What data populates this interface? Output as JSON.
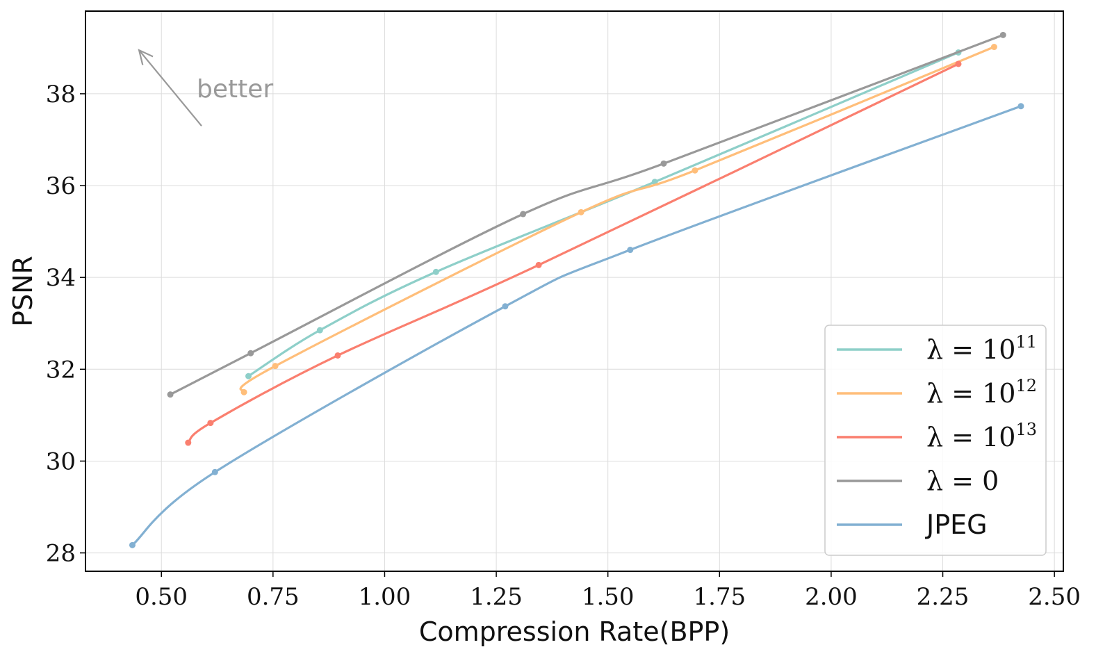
{
  "chart_data": {
    "type": "line",
    "title": "",
    "xlabel": "Compression Rate(BPP)",
    "ylabel": "PSNR",
    "xlim": [
      0.33,
      2.52
    ],
    "ylim": [
      27.6,
      39.8
    ],
    "xticks": [
      0.5,
      0.75,
      1.0,
      1.25,
      1.5,
      1.75,
      2.0,
      2.25,
      2.5
    ],
    "xtick_labels": [
      "0.50",
      "0.75",
      "1.00",
      "1.25",
      "1.50",
      "1.75",
      "2.00",
      "2.25",
      "2.50"
    ],
    "yticks": [
      28,
      30,
      32,
      34,
      36,
      38
    ],
    "ytick_labels": [
      "28",
      "30",
      "32",
      "34",
      "36",
      "38"
    ],
    "grid": true,
    "legend_position": "lower-right",
    "annotation": {
      "text": "better",
      "arrow_from": [
        0.59,
        37.3
      ],
      "arrow_to": [
        0.45,
        38.95
      ]
    },
    "series": [
      {
        "name": "λ = 10^11",
        "legend_base": "λ = 10",
        "legend_exp": "11",
        "color": "#8ecfc9",
        "x": [
          0.695,
          0.855,
          1.115,
          1.605,
          2.285
        ],
        "y": [
          31.85,
          32.85,
          34.12,
          36.08,
          38.9
        ]
      },
      {
        "name": "λ = 10^12",
        "legend_base": "λ = 10",
        "legend_exp": "12",
        "color": "#ffbe7a",
        "x": [
          0.685,
          0.755,
          1.44,
          1.695,
          2.365
        ],
        "y": [
          31.5,
          32.07,
          35.42,
          36.33,
          39.02
        ]
      },
      {
        "name": "λ = 10^13",
        "legend_base": "λ = 10",
        "legend_exp": "13",
        "color": "#fa7f6f",
        "x": [
          0.56,
          0.61,
          0.895,
          1.345,
          2.285
        ],
        "y": [
          30.4,
          30.83,
          32.3,
          34.27,
          38.65
        ]
      },
      {
        "name": "λ = 0",
        "legend_base": "λ = 0",
        "legend_exp": "",
        "color": "#999999",
        "x": [
          0.52,
          0.7,
          1.31,
          1.625,
          2.385
        ],
        "y": [
          31.45,
          32.35,
          35.38,
          36.48,
          39.28
        ]
      },
      {
        "name": "JPEG",
        "legend_base": "JPEG",
        "legend_exp": "",
        "color": "#82b0d2",
        "x": [
          0.435,
          0.62,
          1.27,
          1.55,
          2.425
        ],
        "y": [
          28.17,
          29.76,
          33.37,
          34.6,
          37.73
        ]
      }
    ]
  }
}
